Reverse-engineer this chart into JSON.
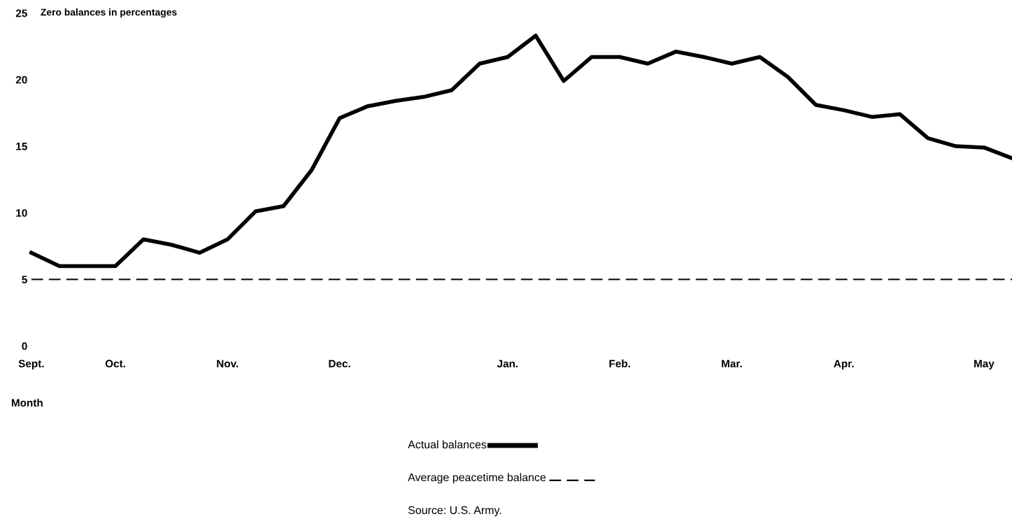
{
  "chart_data": {
    "type": "line",
    "ylabel": "Zero balances in percentages",
    "xlabel": "Month",
    "ylim": [
      0,
      25
    ],
    "yticks": [
      0,
      5,
      10,
      15,
      20,
      25
    ],
    "categories": [
      "Sept.",
      null,
      null,
      "Oct.",
      null,
      null,
      null,
      "Nov.",
      null,
      null,
      null,
      "Dec.",
      null,
      null,
      null,
      null,
      null,
      "Jan.",
      null,
      null,
      null,
      "Feb.",
      null,
      null,
      null,
      "Mar.",
      null,
      null,
      null,
      "Apr.",
      null,
      null,
      null,
      null,
      "May",
      null
    ],
    "grid": false,
    "legend": "bottom",
    "marker": "none",
    "series": [
      {
        "name": "Actual balances",
        "color": "#000000",
        "line_style": "solid",
        "values": [
          7.0,
          6.0,
          6.0,
          6.0,
          8.0,
          7.6,
          7.0,
          8.0,
          10.1,
          10.5,
          13.2,
          17.1,
          18.0,
          18.4,
          18.7,
          19.2,
          21.2,
          21.7,
          23.3,
          19.9,
          21.7,
          21.7,
          21.2,
          22.1,
          21.7,
          21.2,
          21.7,
          20.2,
          18.1,
          17.7,
          17.2,
          17.4,
          15.6,
          15.0,
          14.9,
          14.1
        ]
      },
      {
        "name": "Average peacetime balance",
        "color": "#000000",
        "line_style": "dashed",
        "values": [
          5,
          5,
          5,
          5,
          5,
          5,
          5,
          5,
          5,
          5,
          5,
          5,
          5,
          5,
          5,
          5,
          5,
          5,
          5,
          5,
          5,
          5,
          5,
          5,
          5,
          5,
          5,
          5,
          5,
          5,
          5,
          5,
          5,
          5,
          5,
          5
        ]
      }
    ],
    "annotations": [
      "Source: U.S. Army."
    ]
  }
}
